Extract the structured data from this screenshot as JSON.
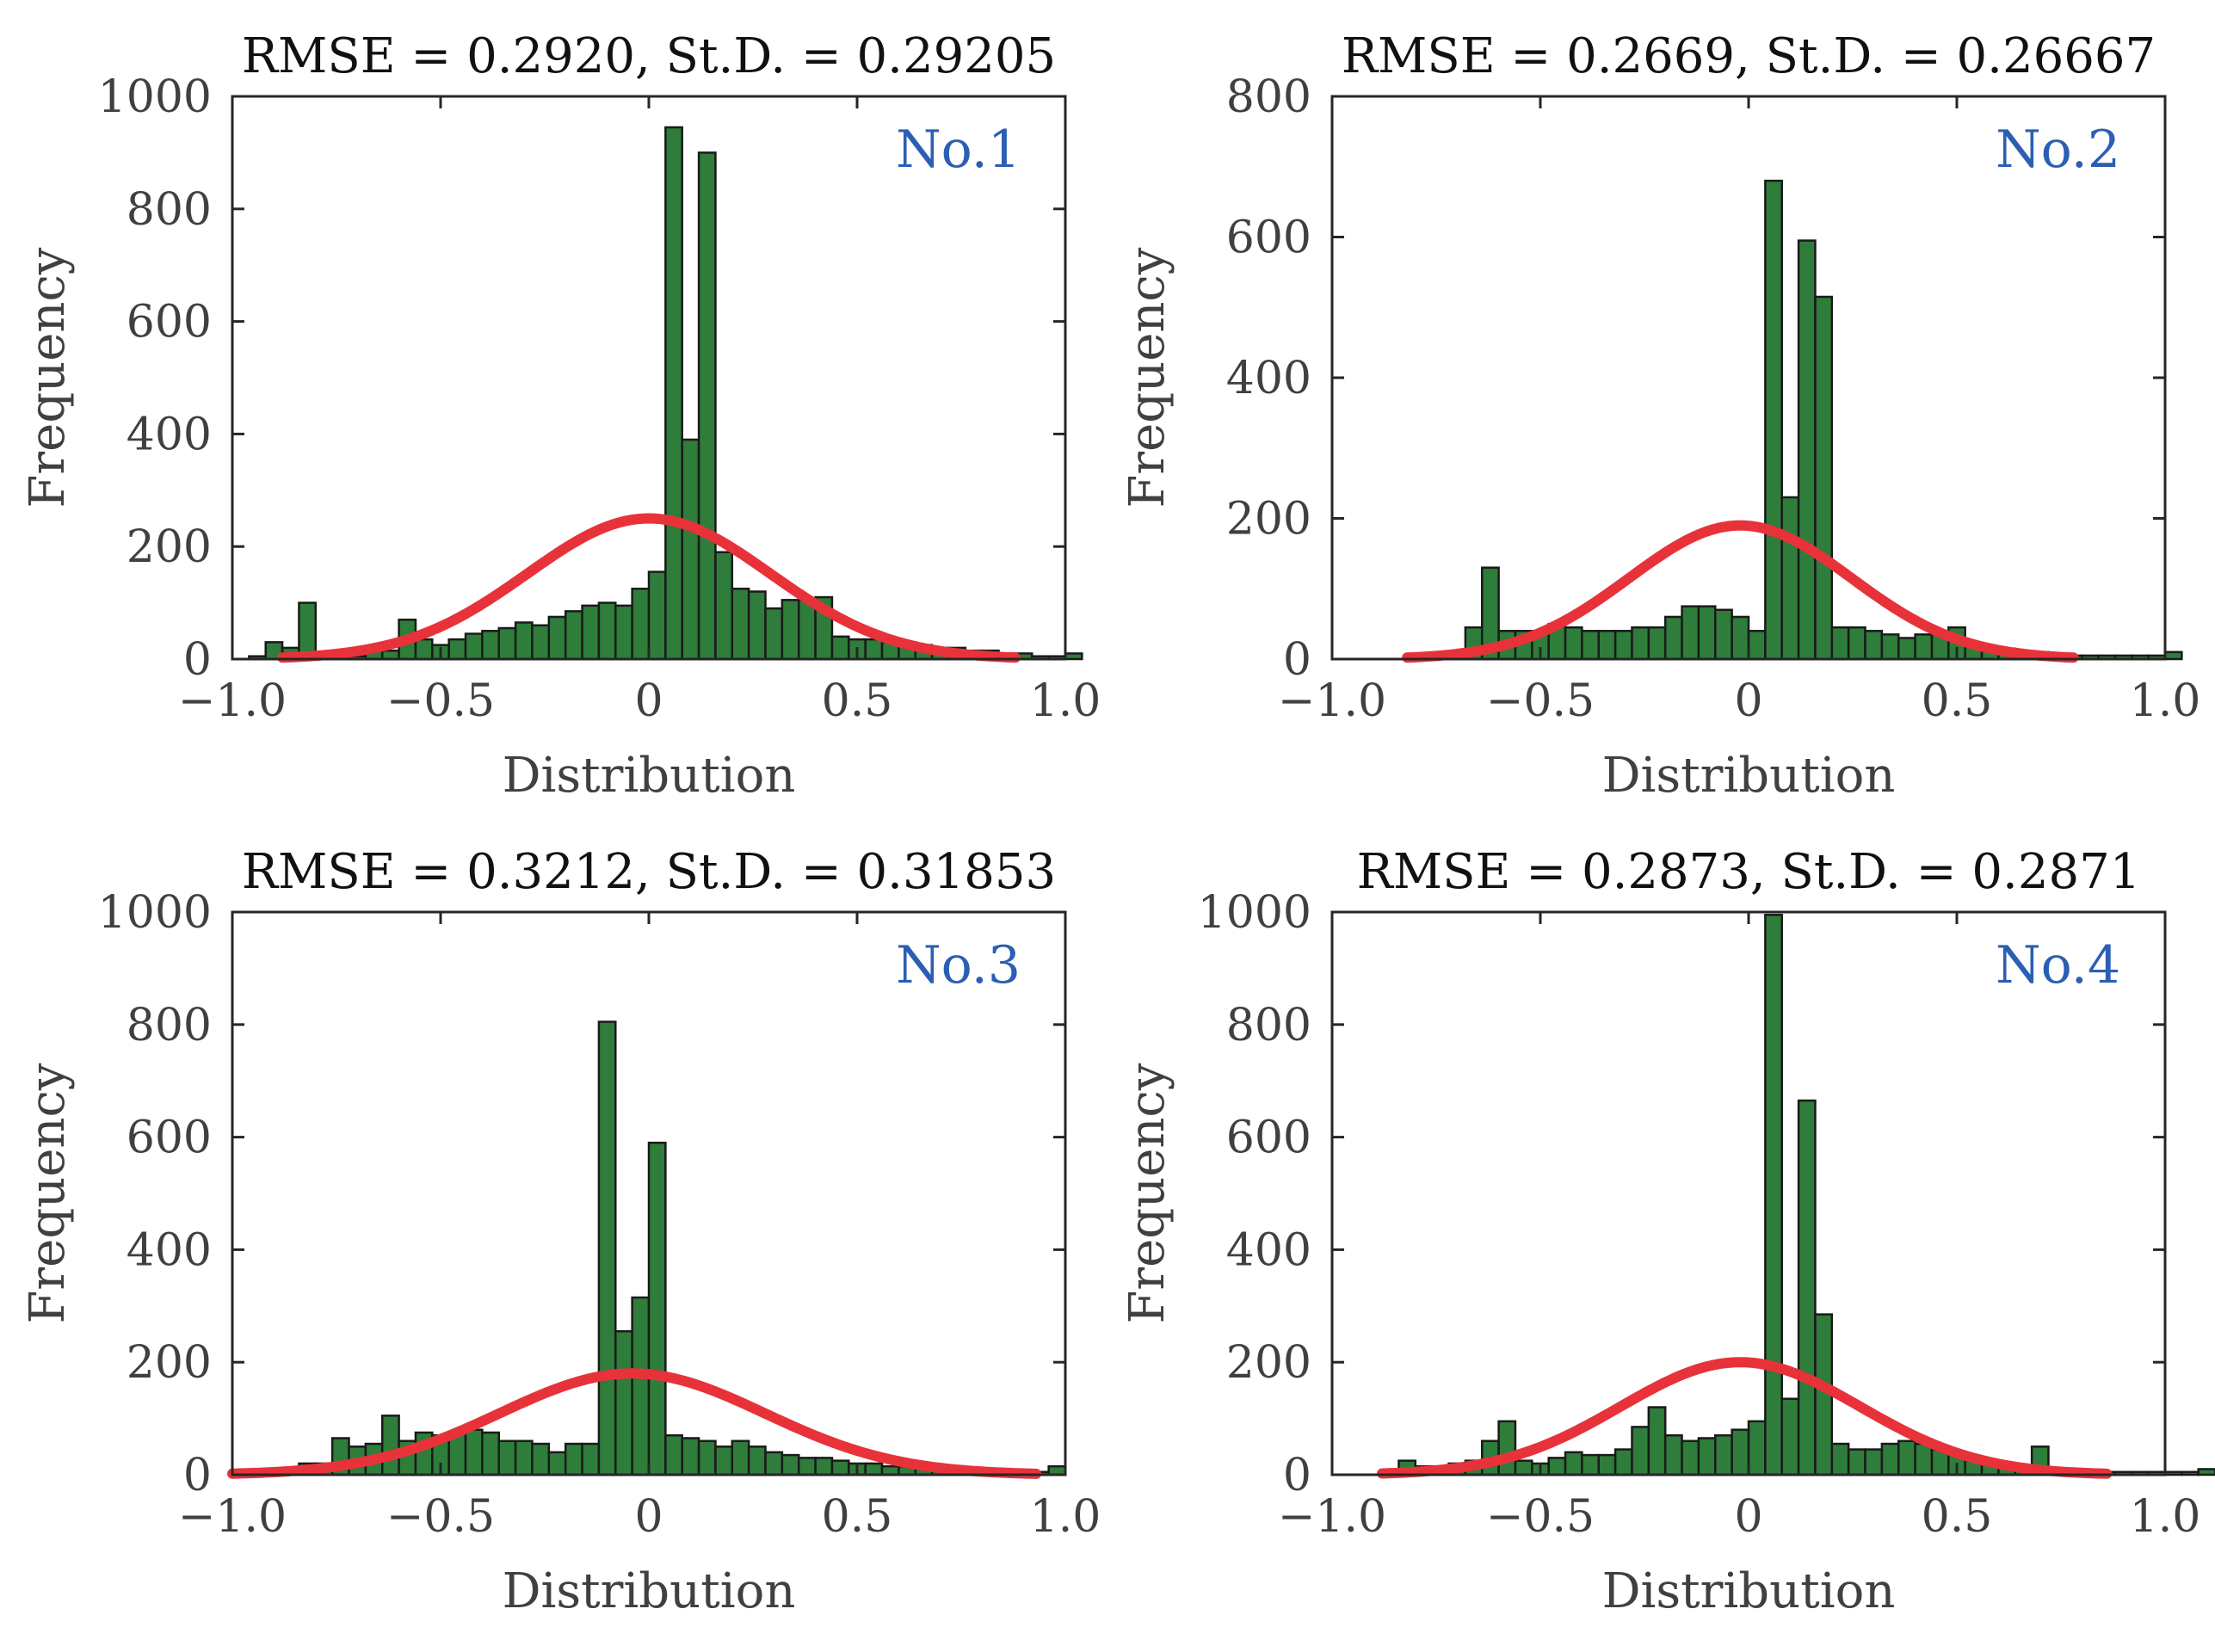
{
  "colors": {
    "bar": "#2e7d3a",
    "curve": "#e8323a",
    "panel_tag": "#2b5fb4"
  },
  "chart_data": [
    {
      "type": "bar",
      "title": "RMSE = 0.2920, St.D. = 0.29205",
      "panel_tag": "No.1",
      "xlabel": "Distribution",
      "ylabel": "Frequency",
      "xlim": [
        -1.0,
        1.0
      ],
      "ylim": [
        0,
        1000
      ],
      "xticks": [
        -1.0,
        -0.5,
        0,
        0.5,
        1.0
      ],
      "xtick_labels": [
        "−1.0",
        "−0.5",
        "0",
        "0.5",
        "1.0"
      ],
      "yticks": [
        0,
        200,
        400,
        600,
        800,
        1000
      ],
      "ytick_labels": [
        "0",
        "200",
        "400",
        "600",
        "800",
        "1000"
      ],
      "bin_start": -0.96,
      "bin_width": 0.04,
      "values": [
        5,
        30,
        20,
        100,
        10,
        5,
        5,
        15,
        15,
        70,
        35,
        25,
        35,
        45,
        50,
        55,
        65,
        60,
        75,
        85,
        95,
        100,
        95,
        125,
        155,
        945,
        390,
        900,
        190,
        125,
        120,
        90,
        105,
        105,
        110,
        40,
        35,
        35,
        30,
        30,
        25,
        20,
        20,
        15,
        15,
        10,
        10,
        5,
        5,
        10
      ],
      "fit": {
        "mean": 0.0,
        "peak": 250,
        "sigma": 0.292,
        "x_range": [
          -0.88,
          0.88
        ]
      }
    },
    {
      "type": "bar",
      "title": "RMSE = 0.2669, St.D. = 0.26667",
      "panel_tag": "No.2",
      "xlabel": "Distribution",
      "ylabel": "Frequency",
      "xlim": [
        -1.0,
        1.0
      ],
      "ylim": [
        0,
        800
      ],
      "xticks": [
        -1.0,
        -0.5,
        0,
        0.5,
        1.0
      ],
      "xtick_labels": [
        "−1.0",
        "−0.5",
        "0",
        "0.5",
        "1.0"
      ],
      "yticks": [
        0,
        200,
        400,
        600,
        800
      ],
      "ytick_labels": [
        "0",
        "200",
        "400",
        "600",
        "800"
      ],
      "bin_start": -0.68,
      "bin_width": 0.04,
      "values": [
        45,
        130,
        40,
        40,
        40,
        50,
        45,
        40,
        40,
        40,
        45,
        45,
        60,
        75,
        75,
        70,
        60,
        40,
        680,
        230,
        595,
        515,
        45,
        45,
        40,
        35,
        30,
        35,
        40,
        45,
        20,
        15,
        15,
        10,
        10,
        5,
        5,
        5,
        5,
        5,
        5,
        5,
        10
      ],
      "fit": {
        "mean": -0.02,
        "peak": 190,
        "sigma": 0.2667,
        "x_range": [
          -0.82,
          0.78
        ]
      }
    },
    {
      "type": "bar",
      "title": "RMSE = 0.3212, St.D. = 0.31853",
      "panel_tag": "No.3",
      "xlabel": "Distribution",
      "ylabel": "Frequency",
      "xlim": [
        -1.0,
        1.0
      ],
      "ylim": [
        0,
        1000
      ],
      "xticks": [
        -1.0,
        -0.5,
        0,
        0.5,
        1.0
      ],
      "xtick_labels": [
        "−1.0",
        "−0.5",
        "0",
        "0.5",
        "1.0"
      ],
      "yticks": [
        0,
        200,
        400,
        600,
        800,
        1000
      ],
      "ytick_labels": [
        "0",
        "200",
        "400",
        "600",
        "800",
        "1000"
      ],
      "bin_start": -1.0,
      "bin_width": 0.04,
      "values": [
        5,
        5,
        5,
        10,
        20,
        20,
        65,
        50,
        55,
        105,
        60,
        75,
        70,
        75,
        80,
        75,
        60,
        60,
        55,
        40,
        55,
        55,
        805,
        255,
        315,
        590,
        70,
        65,
        60,
        50,
        60,
        50,
        40,
        35,
        30,
        30,
        25,
        20,
        20,
        15,
        15,
        10,
        10,
        5,
        5,
        5,
        5,
        5,
        5,
        15
      ],
      "fit": {
        "mean": -0.04,
        "peak": 180,
        "sigma": 0.3185,
        "x_range": [
          -1.0,
          0.93
        ]
      }
    },
    {
      "type": "bar",
      "title": "RMSE = 0.2873, St.D. = 0.2871",
      "panel_tag": "No.4",
      "xlabel": "Distribution",
      "ylabel": "Frequency",
      "xlim": [
        -1.0,
        1.0
      ],
      "ylim": [
        0,
        1000
      ],
      "xticks": [
        -1.0,
        -0.5,
        0,
        0.5,
        1.0
      ],
      "xtick_labels": [
        "−1.0",
        "−0.5",
        "0",
        "0.5",
        "1.0"
      ],
      "yticks": [
        0,
        200,
        400,
        600,
        800,
        1000
      ],
      "ytick_labels": [
        "0",
        "200",
        "400",
        "600",
        "800",
        "1000"
      ],
      "bin_start": -0.84,
      "bin_width": 0.04,
      "values": [
        25,
        15,
        15,
        20,
        25,
        60,
        95,
        25,
        20,
        30,
        40,
        35,
        35,
        45,
        85,
        120,
        70,
        60,
        65,
        70,
        80,
        95,
        995,
        135,
        665,
        285,
        55,
        45,
        45,
        55,
        60,
        55,
        45,
        35,
        25,
        20,
        20,
        15,
        50,
        10,
        10,
        5,
        5,
        5,
        5,
        5,
        5,
        5,
        10
      ],
      "fit": {
        "mean": -0.02,
        "peak": 200,
        "sigma": 0.2871,
        "x_range": [
          -0.88,
          0.86
        ]
      }
    }
  ]
}
